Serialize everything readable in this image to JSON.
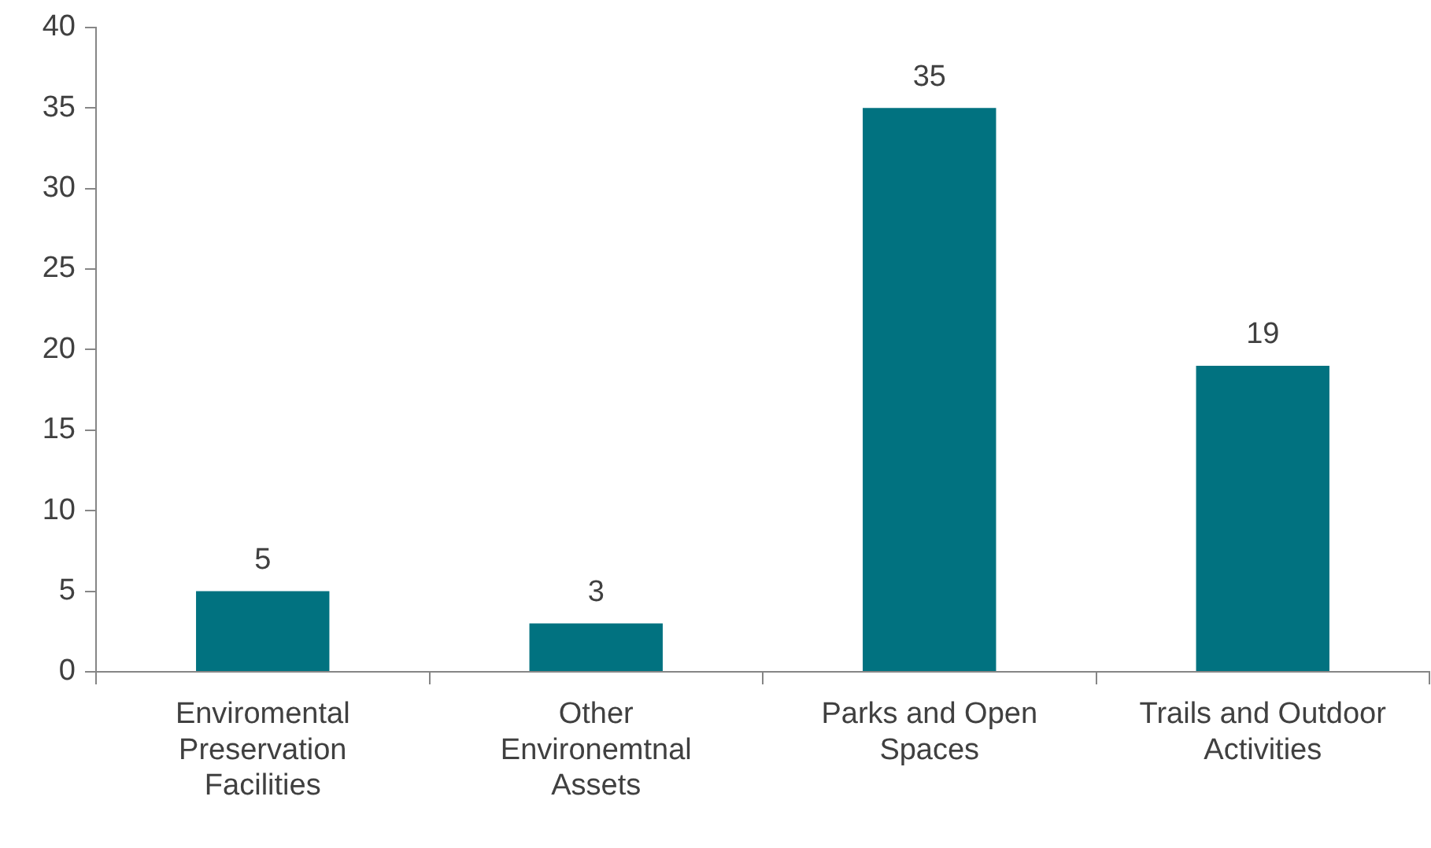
{
  "chart_data": {
    "type": "bar",
    "categories": [
      "Enviromental Preservation Facilities",
      "Other Environemtnal Assets",
      "Parks and Open Spaces",
      "Trails and Outdoor Activities"
    ],
    "values": [
      5,
      3,
      35,
      19
    ],
    "color": "#017280",
    "ylim": [
      0,
      40
    ],
    "yticks": [
      0,
      5,
      10,
      15,
      20,
      25,
      30,
      35,
      40
    ],
    "data_labels": true
  }
}
